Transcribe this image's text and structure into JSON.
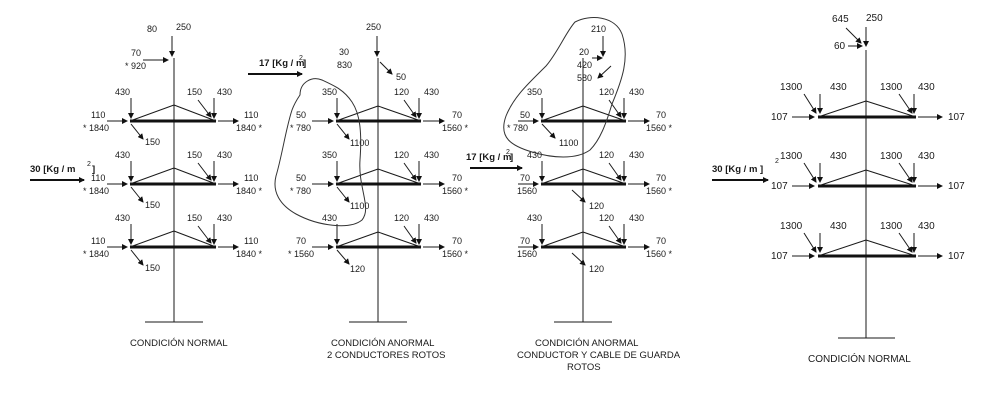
{
  "wind_pressure": {
    "p30": "30 [Kg / m",
    "p17": "17 [Kg / m",
    "exp": "2",
    "p30_tower4": "30 [Kg / m ]"
  },
  "tower1": {
    "caption": "CONDICIÓN NORMAL",
    "top": {
      "v1": "80",
      "v2": "250",
      "h": "70",
      "t": "* 920"
    },
    "arms": [
      {
        "lv": "430",
        "rv1": "150",
        "rv2": "430",
        "lt": "110",
        "lb": "* 1840",
        "rt": "110",
        "rb": "1840 *",
        "ld": "150"
      },
      {
        "lv": "430",
        "rv1": "150",
        "rv2": "430",
        "lt": "110",
        "lb": "* 1840",
        "rt": "110",
        "rb": "1840 *",
        "ld": "150"
      },
      {
        "lv": "430",
        "rv1": "150",
        "rv2": "430",
        "lt": "110",
        "lb": "* 1840",
        "rt": "110",
        "rb": "1840 *",
        "ld": "150"
      }
    ]
  },
  "tower2": {
    "caption1": "CONDICIÓN ANORMAL",
    "caption2": "2 CONDUCTORES ROTOS",
    "top": {
      "v": "250",
      "h": "30",
      "t": "830",
      "d": "50"
    },
    "arms": [
      {
        "lv": "350",
        "rv1": "120",
        "rv2": "430",
        "lt": "50",
        "lb": "* 780",
        "rt": "70",
        "rb": "1560 *",
        "ld": "1100"
      },
      {
        "lv": "350",
        "rv1": "120",
        "rv2": "430",
        "lt": "50",
        "lb": "* 780",
        "rt": "70",
        "rb": "1560 *",
        "ld": "1100"
      },
      {
        "lv": "430",
        "rv1": "120",
        "rv2": "430",
        "lt": "70",
        "lb": "* 1560",
        "rt": "70",
        "rb": "1560 *",
        "ld": "120"
      }
    ]
  },
  "tower3": {
    "caption1": "CONDICIÓN ANORMAL",
    "caption2": "CONDUCTOR Y CABLE DE GUARDA",
    "caption3": "ROTOS",
    "top": {
      "v": "210",
      "h": "20",
      "t1": "420",
      "t2": "580"
    },
    "arms": [
      {
        "lv": "350",
        "rv1": "120",
        "rv2": "430",
        "lt": "50",
        "lb": "* 780",
        "rt": "70",
        "rb": "1560 *",
        "ld": "1100"
      },
      {
        "lv": "430",
        "rv1": "120",
        "rv2": "430",
        "lt": "70",
        "lb": "1560",
        "rt": "70",
        "rb": "1560 *",
        "ld": "120"
      },
      {
        "lv": "430",
        "rv1": "120",
        "rv2": "430",
        "lt": "70",
        "lb": "1560",
        "rt": "70",
        "rb": "1560 *",
        "ld": "120"
      }
    ]
  },
  "tower4": {
    "caption": "CONDICIÓN NORMAL",
    "top": {
      "v1": "645",
      "v2": "250",
      "h": "60"
    },
    "arms": [
      {
        "lv1": "1300",
        "lv2": "430",
        "rv1": "1300",
        "rv2": "430",
        "l": "107",
        "r": "107"
      },
      {
        "lv1": "1300",
        "lv2": "430",
        "rv1": "1300",
        "rv2": "430",
        "l": "107",
        "r": "107"
      },
      {
        "lv1": "1300",
        "lv2": "430",
        "rv1": "1300",
        "rv2": "430",
        "l": "107",
        "r": "107"
      }
    ]
  }
}
